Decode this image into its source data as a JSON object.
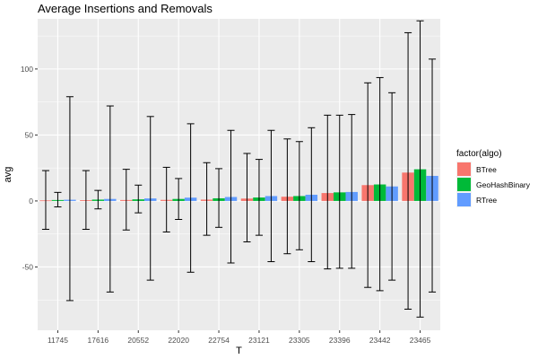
{
  "chart_data": {
    "type": "bar",
    "title": "Average Insertions and Removals",
    "xlabel": "T",
    "ylabel": "avg",
    "categories": [
      "11745",
      "17616",
      "20552",
      "22020",
      "22754",
      "23121",
      "23305",
      "23396",
      "23442",
      "23465"
    ],
    "y_ticks": [
      -50,
      0,
      50,
      100
    ],
    "ylim": [
      -98,
      138
    ],
    "grid": true,
    "legend": {
      "title": "factor(algo)",
      "position": "right"
    },
    "series": [
      {
        "name": "BTree",
        "color": "#F8766D",
        "values": [
          0.4,
          0.6,
          0.7,
          0.8,
          1.0,
          1.8,
          3.2,
          6.0,
          12.0,
          21.5
        ],
        "error_low": [
          -21.5,
          -21.5,
          -22,
          -23.5,
          -26,
          -31,
          -40,
          -51.5,
          -65.5,
          -82
        ],
        "error_high": [
          23,
          23,
          24,
          25.5,
          29,
          36,
          47,
          65,
          89.5,
          127.5
        ]
      },
      {
        "name": "GeoHashBinary",
        "color": "#00BA38",
        "values": [
          0.7,
          1.0,
          1.2,
          1.5,
          2.0,
          2.6,
          3.7,
          6.5,
          12.5,
          24.0
        ],
        "error_low": [
          -4.5,
          -6,
          -9,
          -14,
          -20,
          -26,
          -37,
          -51,
          -68,
          -88
        ],
        "error_high": [
          6.5,
          8,
          12,
          17,
          24.5,
          31.5,
          45,
          65,
          93.5,
          136.5
        ]
      },
      {
        "name": "RTree",
        "color": "#619CFF",
        "values": [
          0.9,
          1.5,
          1.9,
          2.5,
          3.0,
          3.7,
          4.7,
          6.8,
          11.0,
          19.0
        ],
        "error_low": [
          -75.5,
          -69,
          -60,
          -54,
          -47,
          -46,
          -46,
          -51,
          -60,
          -69
        ],
        "error_high": [
          79,
          72,
          64,
          58.5,
          53.5,
          53.5,
          55.5,
          65.5,
          82,
          107.5
        ]
      }
    ]
  }
}
